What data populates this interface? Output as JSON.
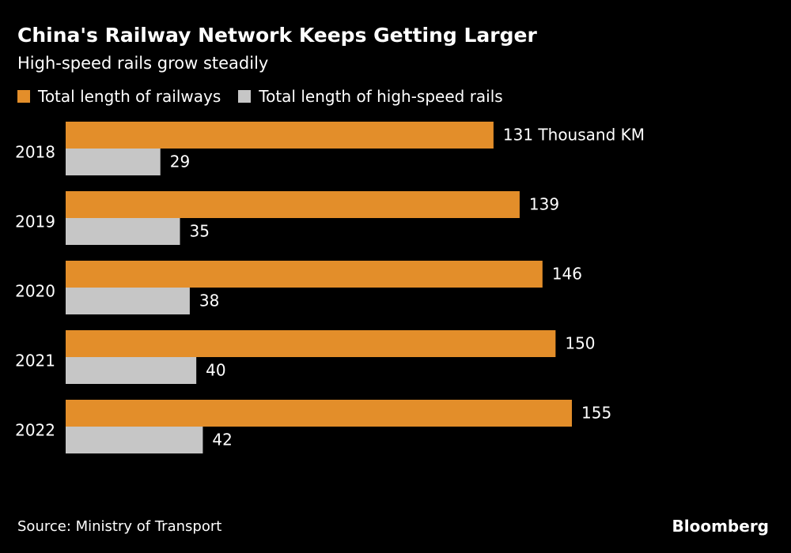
{
  "chart_data": {
    "type": "bar",
    "orientation": "horizontal",
    "title": "China's Railway Network Keeps Getting Larger",
    "subtitle": "High-speed rails grow steadily",
    "categories": [
      "2018",
      "2019",
      "2020",
      "2021",
      "2022"
    ],
    "series": [
      {
        "name": "Total length of railways",
        "values": [
          131,
          139,
          146,
          150,
          155
        ],
        "labels": [
          "131 Thousand KM",
          "139",
          "146",
          "150",
          "155"
        ],
        "color": "#e38e2a"
      },
      {
        "name": "Total length of high-speed rails",
        "values": [
          29,
          35,
          38,
          40,
          42
        ],
        "labels": [
          "29",
          "35",
          "38",
          "40",
          "42"
        ],
        "color": "#c6c6c6"
      }
    ],
    "xlim": [
      0,
      155
    ],
    "grid": false,
    "legend": "top-left"
  },
  "footer": {
    "source": "Source: Ministry of Transport",
    "brand": "Bloomberg"
  }
}
